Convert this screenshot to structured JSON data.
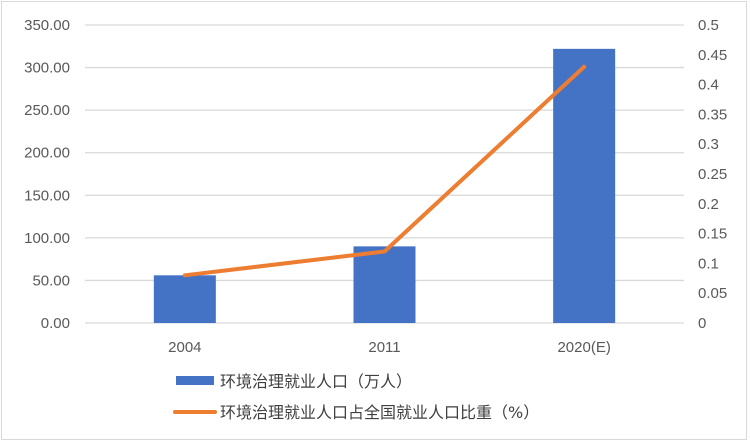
{
  "chart_data": {
    "type": "bar+line",
    "categories": [
      "2004",
      "2011",
      "2020(E)"
    ],
    "series": [
      {
        "name": "环境治理就业人口（万人）",
        "type": "bar",
        "axis": "left",
        "values": [
          56,
          90,
          322
        ],
        "color": "#4472C4"
      },
      {
        "name": "环境治理就业人口占全国就业人口比重（%）",
        "type": "line",
        "axis": "right",
        "values": [
          0.08,
          0.12,
          0.43
        ],
        "color": "#ED7D31"
      }
    ],
    "y_left": {
      "ylim": [
        0,
        350
      ],
      "ticks": [
        "0.00",
        "50.00",
        "100.00",
        "150.00",
        "200.00",
        "250.00",
        "300.00",
        "350.00"
      ]
    },
    "y_right": {
      "ylim": [
        0,
        0.5
      ],
      "ticks": [
        "0",
        "0.05",
        "0.1",
        "0.15",
        "0.2",
        "0.25",
        "0.3",
        "0.35",
        "0.4",
        "0.45",
        "0.5"
      ]
    },
    "grid": true,
    "legend_position": "bottom"
  }
}
